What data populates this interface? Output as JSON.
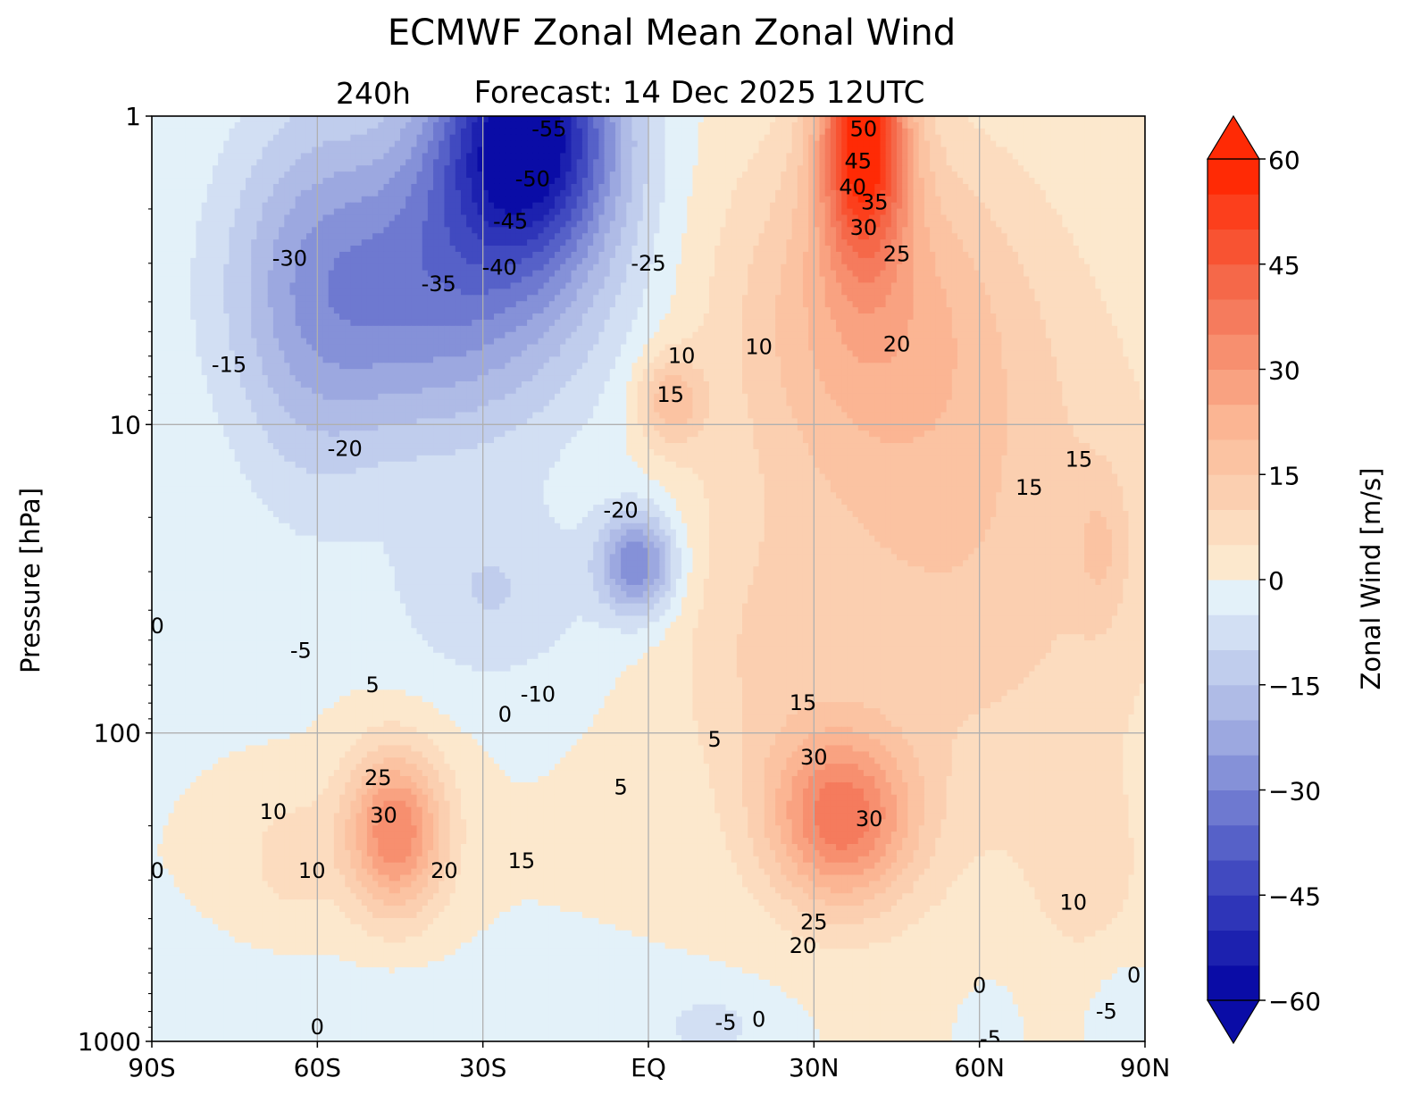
{
  "colors": {
    "neg_extreme": "#0a0ca6",
    "pos_extreme": "#ff2a05",
    "grid": "#b0b0b0"
  },
  "chart_data": {
    "type": "contourf",
    "title": "ECMWF Zonal Mean Zonal Wind",
    "subtitle_lead": "240h",
    "subtitle": "Forecast:  14 Dec 2025  12UTC",
    "ylabel": "Pressure [hPa]",
    "xlabel": "",
    "x_ticks": [
      "90S",
      "60S",
      "30S",
      "EQ",
      "30N",
      "60N",
      "90N"
    ],
    "x_tick_values": [
      -90,
      -60,
      -30,
      0,
      30,
      60,
      90
    ],
    "y_ticks": [
      "1",
      "10",
      "100",
      "1000"
    ],
    "y_tick_values": [
      1,
      10,
      100,
      1000
    ],
    "ylim": [
      1000,
      1
    ],
    "yscale": "log",
    "colorbar": {
      "label": "Zonal Wind [m/s]",
      "ticks": [
        "60",
        "45",
        "30",
        "15",
        "0",
        "−15",
        "−30",
        "−45",
        "−60"
      ],
      "tick_values": [
        60,
        45,
        30,
        15,
        0,
        -15,
        -30,
        -45,
        -60
      ],
      "vmin": -60,
      "vmax": 60,
      "step": 5,
      "extend": "both"
    },
    "features": [
      {
        "name": "southern hemisphere stratospheric easterly core",
        "lat": -20,
        "p": 1.5,
        "value": -55
      },
      {
        "name": "northern polar night jet",
        "lat": 38,
        "p": 1.4,
        "value": 52
      },
      {
        "name": "SH subtropical jet",
        "lat": -45,
        "p": 200,
        "value": 32
      },
      {
        "name": "NH subtropical jet",
        "lat": 35,
        "p": 180,
        "value": 33
      },
      {
        "name": "equatorial stratospheric easterlies",
        "lat": -3,
        "p": 28,
        "value": -28
      },
      {
        "name": "equatorial westerly cell",
        "lat": 5,
        "p": 8,
        "value": 17
      }
    ],
    "contour_labels": [
      {
        "text": "-55",
        "lat": -18,
        "p": 1.1
      },
      {
        "text": "-50",
        "lat": -21,
        "p": 1.6
      },
      {
        "text": "-45",
        "lat": -25,
        "p": 2.2
      },
      {
        "text": "-40",
        "lat": -27,
        "p": 3.1
      },
      {
        "text": "-35",
        "lat": -38,
        "p": 3.5
      },
      {
        "text": "-30",
        "lat": -65,
        "p": 2.9
      },
      {
        "text": "-25",
        "lat": 0,
        "p": 3.0
      },
      {
        "text": "-20",
        "lat": -55,
        "p": 12
      },
      {
        "text": "-20",
        "lat": -5,
        "p": 19
      },
      {
        "text": "-15",
        "lat": -76,
        "p": 6.4
      },
      {
        "text": "-10",
        "lat": -20,
        "p": 75
      },
      {
        "text": "-5",
        "lat": -63,
        "p": 54
      },
      {
        "text": "0",
        "lat": -26,
        "p": 87
      },
      {
        "text": "5",
        "lat": -50,
        "p": 70
      },
      {
        "text": "10",
        "lat": 6,
        "p": 6.0
      },
      {
        "text": "10",
        "lat": 20,
        "p": 5.6
      },
      {
        "text": "15",
        "lat": 4,
        "p": 8.0
      },
      {
        "text": "20",
        "lat": 45,
        "p": 5.5
      },
      {
        "text": "25",
        "lat": -49,
        "p": 140
      },
      {
        "text": "25",
        "lat": 45,
        "p": 2.8
      },
      {
        "text": "30",
        "lat": 39,
        "p": 2.3
      },
      {
        "text": "35",
        "lat": 41,
        "p": 1.9
      },
      {
        "text": "40",
        "lat": 37,
        "p": 1.7
      },
      {
        "text": "45",
        "lat": 38,
        "p": 1.4
      },
      {
        "text": "50",
        "lat": 39,
        "p": 1.1
      },
      {
        "text": "15",
        "lat": 78,
        "p": 13
      },
      {
        "text": "15",
        "lat": 69,
        "p": 16
      },
      {
        "text": "15",
        "lat": -23,
        "p": 260
      },
      {
        "text": "15",
        "lat": 28,
        "p": 80
      },
      {
        "text": "30",
        "lat": 30,
        "p": 120
      },
      {
        "text": "30",
        "lat": 40,
        "p": 190
      },
      {
        "text": "30",
        "lat": -48,
        "p": 185
      },
      {
        "text": "20",
        "lat": -37,
        "p": 280
      },
      {
        "text": "20",
        "lat": 28,
        "p": 490
      },
      {
        "text": "25",
        "lat": 30,
        "p": 410
      },
      {
        "text": "10",
        "lat": -68,
        "p": 180
      },
      {
        "text": "10",
        "lat": -61,
        "p": 280
      },
      {
        "text": "10",
        "lat": 77,
        "p": 355
      },
      {
        "text": "5",
        "lat": -5,
        "p": 150
      },
      {
        "text": "5",
        "lat": 12,
        "p": 105
      },
      {
        "text": "0",
        "lat": -89,
        "p": 280
      },
      {
        "text": "0",
        "lat": -89,
        "p": 45
      },
      {
        "text": "0",
        "lat": -60,
        "p": 900
      },
      {
        "text": "0",
        "lat": 20,
        "p": 850
      },
      {
        "text": "0",
        "lat": 60,
        "p": 660
      },
      {
        "text": "0",
        "lat": 88,
        "p": 610
      },
      {
        "text": "-5",
        "lat": 14,
        "p": 870
      },
      {
        "text": "-5",
        "lat": 83,
        "p": 800
      },
      {
        "text": "-5",
        "lat": 62,
        "p": 980
      }
    ]
  }
}
